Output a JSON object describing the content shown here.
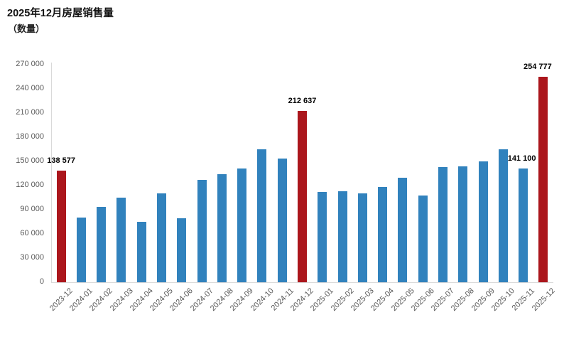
{
  "header": {
    "title": "2025年12月房屋销售量",
    "subtitle": "（数量）"
  },
  "colors": {
    "bar": "#3182BD",
    "highlight": "#AB161C",
    "axis_line": "#D9D9D9",
    "tick_text": "#595959",
    "value_label": "#000000"
  },
  "chart_data": {
    "type": "bar",
    "title": "2025年12月房屋销售量",
    "subtitle": "（数量）",
    "xlabel": "",
    "ylabel": "数量",
    "ylim": [
      0,
      270000
    ],
    "grid": false,
    "legend": false,
    "categories": [
      "2023-12",
      "2024-01",
      "2024-02",
      "2024-03",
      "2024-04",
      "2024-05",
      "2024-06",
      "2024-07",
      "2024-08",
      "2024-09",
      "2024-10",
      "2024-11",
      "2024-12",
      "2025-01",
      "2025-02",
      "2025-03",
      "2025-04",
      "2025-05",
      "2025-06",
      "2025-07",
      "2025-08",
      "2025-09",
      "2025-10",
      "2025-11",
      "2025-12"
    ],
    "values": [
      138577,
      80000,
      93000,
      105000,
      75000,
      110000,
      79000,
      126500,
      134000,
      141000,
      165000,
      153000,
      212637,
      111500,
      113000,
      110500,
      118000,
      129500,
      107500,
      142500,
      143500,
      150000,
      164500,
      141100,
      254777
    ],
    "highlighted_indices": [
      0,
      12,
      24
    ],
    "yticks": [
      {
        "value": 0,
        "label": "0"
      },
      {
        "value": 30000,
        "label": "30 000"
      },
      {
        "value": 60000,
        "label": "60 000"
      },
      {
        "value": 90000,
        "label": "90 000"
      },
      {
        "value": 120000,
        "label": "120 000"
      },
      {
        "value": 150000,
        "label": "150 000"
      },
      {
        "value": 180000,
        "label": "180 000"
      },
      {
        "value": 210000,
        "label": "210 000"
      },
      {
        "value": 240000,
        "label": "240 000"
      },
      {
        "value": 270000,
        "label": "270 000"
      }
    ],
    "value_labels": [
      {
        "index": 0,
        "text": "138 577",
        "dx": 0
      },
      {
        "index": 12,
        "text": "212 637",
        "dx": 0
      },
      {
        "index": 23,
        "text": "141 100",
        "dx": -2
      },
      {
        "index": 24,
        "text": "254 777",
        "dx": -8
      }
    ]
  }
}
